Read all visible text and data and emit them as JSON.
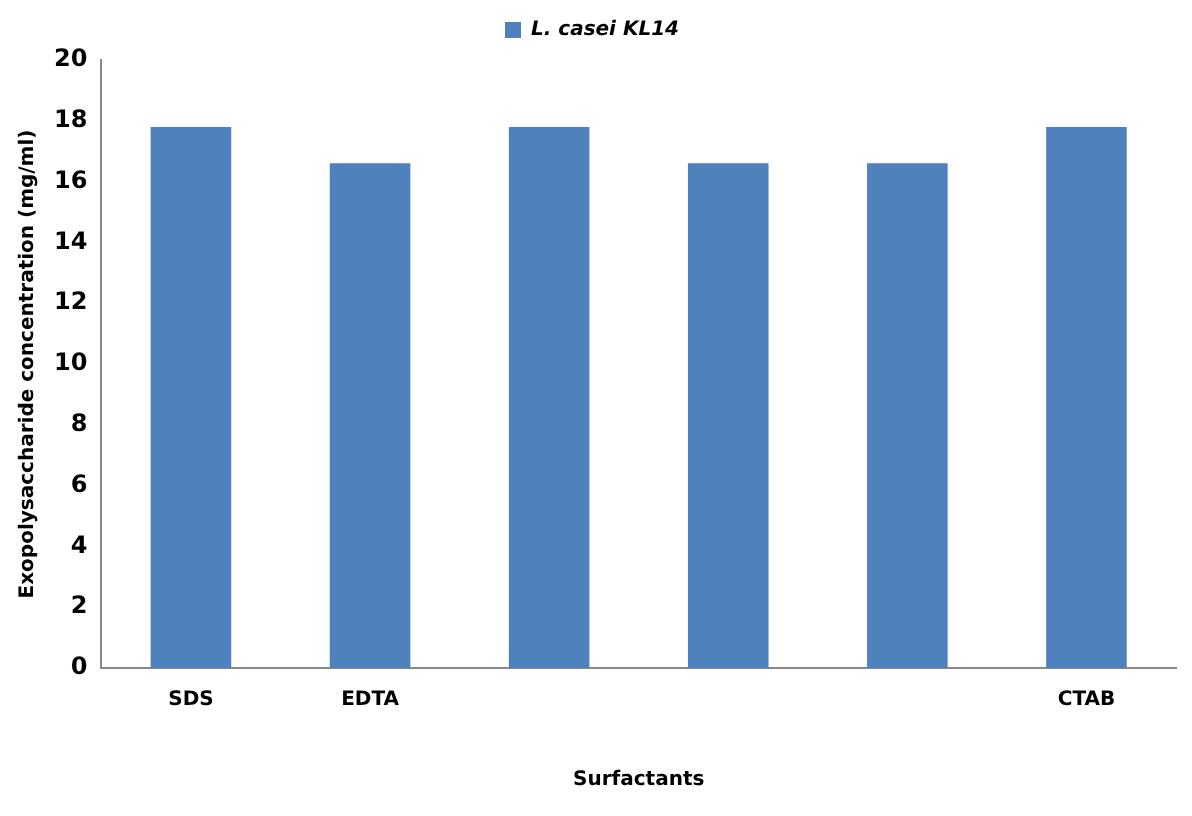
{
  "chart_data": {
    "type": "bar",
    "xlabel": "Surfactants",
    "ylabel": "Exopolysaccharide concentration (mg/ml)",
    "categories": [
      "SDS",
      "EDTA",
      null,
      null,
      null,
      "CTAB"
    ],
    "series": [
      {
        "name": "L. casei KL14",
        "color": "#4f81bd",
        "values": [
          17.8,
          16.6,
          17.8,
          16.6,
          16.6,
          17.8
        ]
      }
    ],
    "ylim": [
      0,
      20
    ],
    "yticks": [
      0,
      2,
      4,
      6,
      8,
      10,
      12,
      14,
      16,
      18,
      20
    ],
    "grid": false,
    "legend": "top"
  }
}
